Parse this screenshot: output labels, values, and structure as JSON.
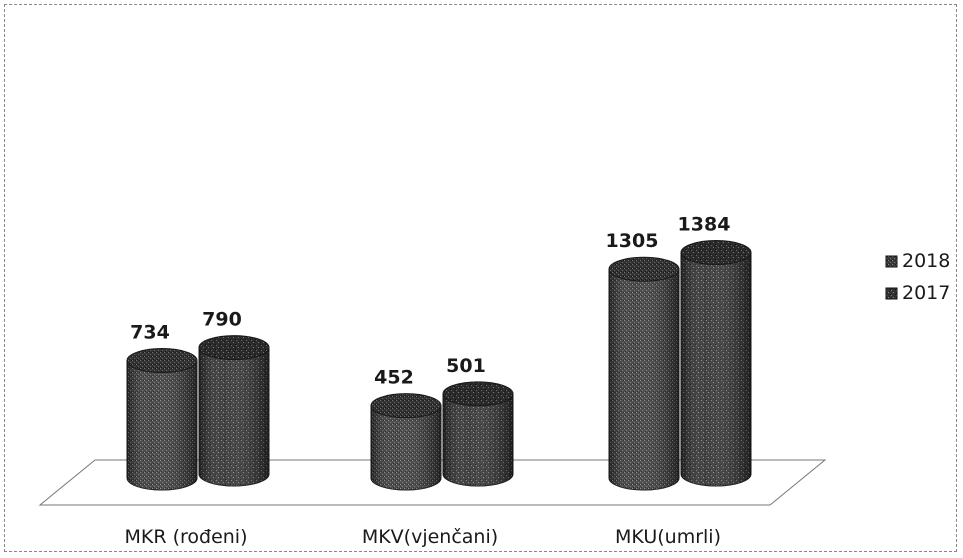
{
  "chart_data": {
    "type": "bar",
    "categories": [
      "MKR (rođeni)",
      "MKV(vjenčani)",
      "MKU(umrli)"
    ],
    "series": [
      {
        "name": "2018",
        "values": [
          734,
          452,
          1305
        ],
        "color": "#3a3a3a"
      },
      {
        "name": "2017",
        "values": [
          790,
          501,
          1384
        ],
        "color": "#2e2e2e"
      }
    ],
    "title": "",
    "xlabel": "",
    "ylabel": "",
    "ylim": [
      0,
      1500
    ],
    "grid": false,
    "legend": "right",
    "data_labels": true,
    "bar_shape": "cylinder"
  }
}
